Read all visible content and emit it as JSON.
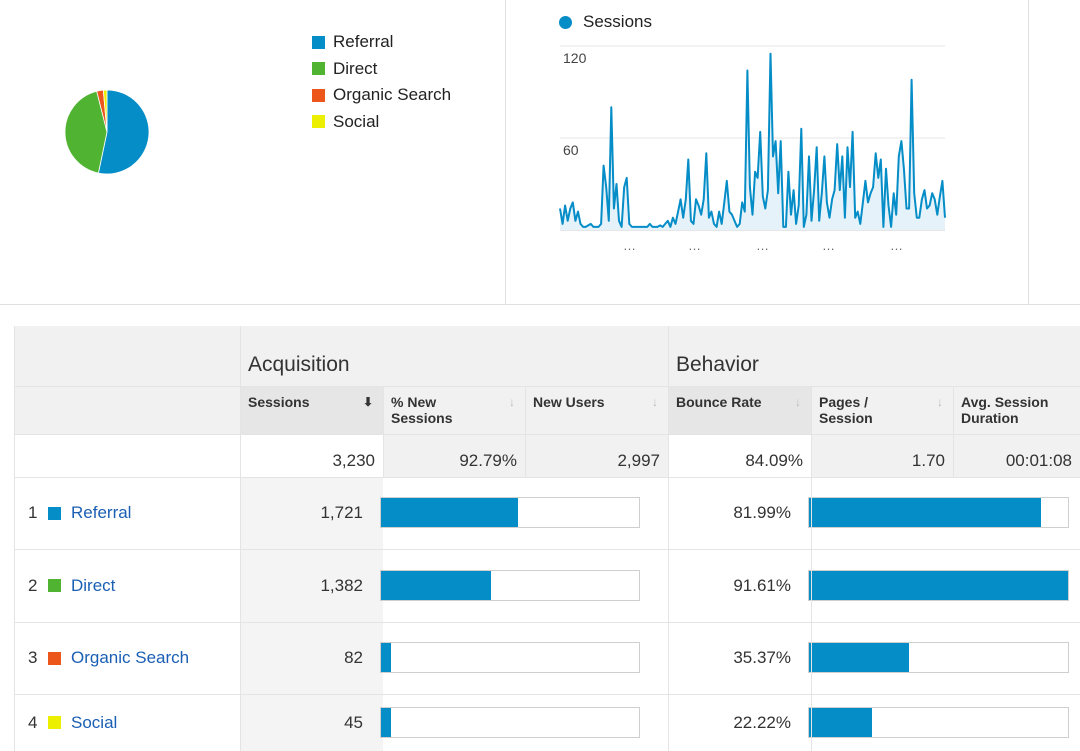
{
  "pie": {
    "legend": [
      {
        "label": "Referral",
        "color": "#058dc7"
      },
      {
        "label": "Direct",
        "color": "#50b432"
      },
      {
        "label": "Organic Search",
        "color": "#ed561b"
      },
      {
        "label": "Social",
        "color": "#edef00"
      }
    ]
  },
  "chart_data": [
    {
      "type": "pie",
      "title": "",
      "categories": [
        "Referral",
        "Direct",
        "Organic Search",
        "Social"
      ],
      "values": [
        1721,
        1382,
        82,
        45
      ]
    },
    {
      "type": "area",
      "title": "",
      "legend": "Sessions",
      "ylim": [
        0,
        120
      ],
      "yticks": [
        "120",
        "60"
      ],
      "xticks": [
        "…",
        "…",
        "…",
        "…",
        "…"
      ],
      "series": [
        {
          "name": "Sessions",
          "values": [
            14,
            4,
            16,
            6,
            14,
            18,
            6,
            12,
            4,
            2,
            2,
            3,
            4,
            2,
            2,
            2,
            4,
            42,
            28,
            6,
            80,
            14,
            30,
            6,
            2,
            28,
            34,
            4,
            2,
            2,
            2,
            2,
            2,
            2,
            2,
            4,
            2,
            2,
            2,
            3,
            2,
            4,
            6,
            2,
            8,
            4,
            12,
            20,
            8,
            20,
            46,
            6,
            4,
            20,
            16,
            10,
            20,
            50,
            8,
            12,
            4,
            2,
            12,
            4,
            18,
            32,
            12,
            10,
            6,
            2,
            4,
            18,
            12,
            104,
            28,
            10,
            38,
            34,
            64,
            22,
            14,
            26,
            115,
            48,
            58,
            24,
            58,
            2,
            2,
            38,
            10,
            26,
            4,
            16,
            66,
            2,
            10,
            48,
            6,
            26,
            54,
            6,
            24,
            48,
            18,
            8,
            20,
            26,
            56,
            26,
            48,
            8,
            54,
            28,
            64,
            8,
            12,
            4,
            18,
            32,
            18,
            24,
            28,
            50,
            34,
            46,
            2,
            40,
            16,
            2,
            24,
            10,
            48,
            58,
            40,
            14,
            14,
            98,
            24,
            8,
            8,
            20,
            26,
            14,
            16,
            24,
            20,
            10,
            22,
            32,
            8
          ]
        }
      ]
    }
  ],
  "table": {
    "groups": {
      "acquisition": "Acquisition",
      "behavior": "Behavior"
    },
    "columns": {
      "sessions": "Sessions",
      "pct_new_sessions": "% New Sessions",
      "new_users": "New Users",
      "bounce_rate": "Bounce Rate",
      "pages_session": "Pages / Session",
      "avg_duration": "Avg. Session Duration"
    },
    "totals": {
      "sessions": "3,230",
      "pct_new_sessions": "92.79%",
      "new_users": "2,997",
      "bounce_rate": "84.09%",
      "pages_session": "1.70",
      "avg_duration": "00:01:08"
    },
    "rows": [
      {
        "index": "1",
        "channel": "Referral",
        "color": "#058dc7",
        "sessions": "1,721",
        "sessions_num": 1721,
        "bounce_rate": "81.99%",
        "bounce_num": 81.99
      },
      {
        "index": "2",
        "channel": "Direct",
        "color": "#50b432",
        "sessions": "1,382",
        "sessions_num": 1382,
        "bounce_rate": "91.61%",
        "bounce_num": 91.61
      },
      {
        "index": "3",
        "channel": "Organic Search",
        "color": "#ed561b",
        "sessions": "82",
        "sessions_num": 82,
        "bounce_rate": "35.37%",
        "bounce_num": 35.37
      },
      {
        "index": "4",
        "channel": "Social",
        "color": "#edef00",
        "sessions": "45",
        "sessions_num": 45,
        "bounce_rate": "22.22%",
        "bounce_num": 22.22
      }
    ]
  },
  "colors": {
    "accent": "#058dc7",
    "link": "#1a5fb4"
  }
}
